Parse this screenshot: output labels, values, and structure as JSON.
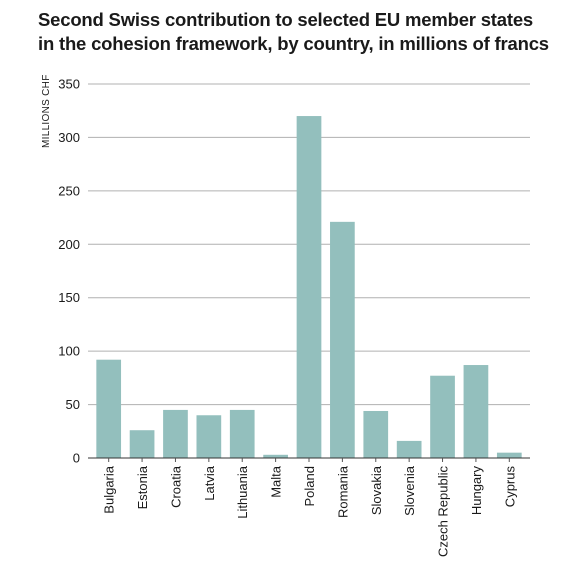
{
  "title_lines": [
    "Second Swiss contribution to selected EU member states",
    "in the cohesion framework, by country, in millions of francs"
  ],
  "chart_data": {
    "type": "bar",
    "title": "Second Swiss contribution to selected EU member states in the cohesion framework, by country, in millions of francs",
    "ylabel": "MILLIONS CHF",
    "xlabel": "",
    "ylim": [
      0,
      350
    ],
    "yticks": [
      0,
      50,
      100,
      150,
      200,
      250,
      300,
      350
    ],
    "grid": true,
    "legend": "none",
    "bar_color": "#93bfbd",
    "categories": [
      "Bulgaria",
      "Estonia",
      "Croatia",
      "Latvia",
      "Lithuania",
      "Malta",
      "Poland",
      "Romania",
      "Slovakia",
      "Slovenia",
      "Czech Republic",
      "Hungary",
      "Cyprus"
    ],
    "values": [
      92,
      26,
      45,
      40,
      45,
      3,
      320,
      221,
      44,
      16,
      77,
      87,
      5
    ]
  }
}
